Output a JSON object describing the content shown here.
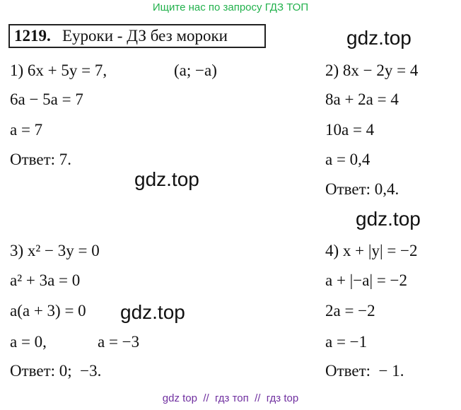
{
  "banner": "Ищите нас по запросу ГДЗ ТОП",
  "header": {
    "number": "1219.",
    "title": "Еуроки - ДЗ без мороки"
  },
  "watermarks": [
    "gdz.top",
    "gdz.top",
    "gdz.top",
    "gdz.top"
  ],
  "problems": [
    {
      "lines": [
        "1) 6x + 5y = 7,",
        "(a; −a)",
        "6a − 5a = 7",
        "a = 7",
        "Ответ: 7."
      ]
    },
    {
      "lines": [
        "2) 8x − 2y = 4",
        "8a + 2a = 4",
        "10a = 4",
        "a = 0,4",
        "Ответ: 0,4."
      ]
    },
    {
      "lines": [
        "3) x² − 3y = 0",
        "a² + 3a = 0",
        "a(a + 3) = 0",
        "a = 0,",
        "a = −3",
        "Ответ: 0;  −3."
      ]
    },
    {
      "lines": [
        "4) x + |y| = −2",
        "a + |−a| = −2",
        "2a = −2",
        "a = −1",
        "Ответ:  − 1."
      ]
    }
  ],
  "footer": "gdz top  //  гдз топ  //  гдз top"
}
